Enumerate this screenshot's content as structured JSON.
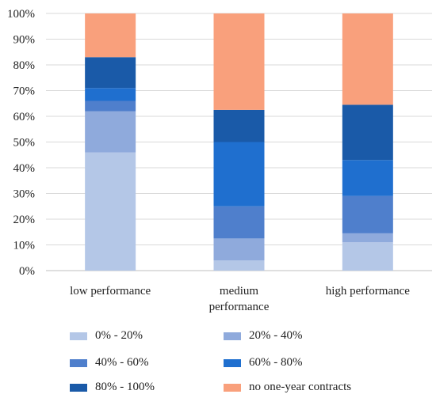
{
  "chart_data": {
    "type": "bar",
    "stacked": true,
    "title": "",
    "xlabel": "",
    "ylabel": "",
    "ylim": [
      0,
      100
    ],
    "y_ticks": [
      "0%",
      "10%",
      "20%",
      "30%",
      "40%",
      "50%",
      "60%",
      "70%",
      "80%",
      "90%",
      "100%"
    ],
    "grid": true,
    "legend_position": "bottom",
    "categories": [
      [
        "low performance"
      ],
      [
        "medium",
        "performance"
      ],
      [
        "high performance"
      ]
    ],
    "series": [
      {
        "name": "0% - 20%",
        "color": "#b4c7e7",
        "values": [
          46,
          4,
          11
        ]
      },
      {
        "name": "20% - 40%",
        "color": "#8faadc",
        "values": [
          16,
          8.5,
          3.5
        ]
      },
      {
        "name": "40% - 60%",
        "color": "#4f7fcc",
        "values": [
          4,
          12.5,
          14.5
        ]
      },
      {
        "name": "60% - 80%",
        "color": "#1f6fcf",
        "values": [
          5,
          25,
          14
        ]
      },
      {
        "name": "80% - 100%",
        "color": "#1a5aa8",
        "values": [
          12,
          12.5,
          21.5
        ]
      },
      {
        "name": "no one-year contracts",
        "color": "#f9a07c",
        "values": [
          17,
          37.5,
          35.5
        ]
      }
    ]
  }
}
